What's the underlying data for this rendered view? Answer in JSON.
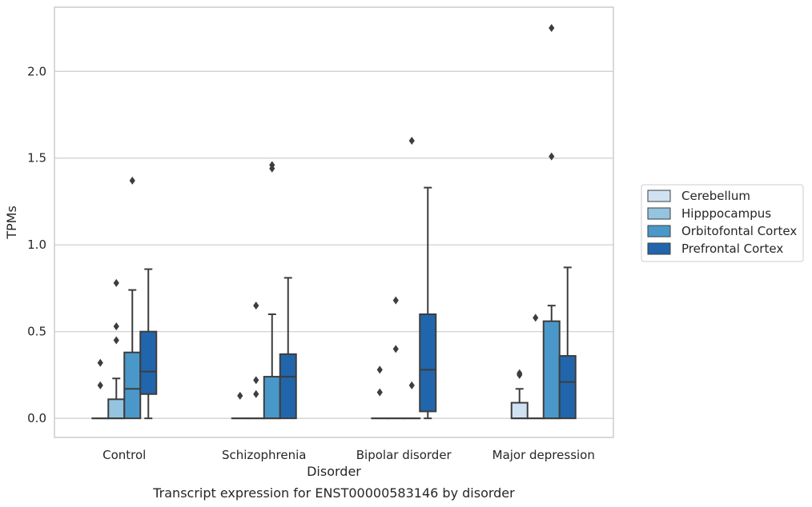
{
  "chart_data": {
    "type": "box",
    "xlabel": "Disorder",
    "ylabel": "TPMs",
    "caption": "Transcript expression for ENST00000583146 by disorder",
    "categories": [
      "Control",
      "Schizophrenia",
      "Bipolar disorder",
      "Major depression"
    ],
    "ylim": [
      -0.11,
      2.37
    ],
    "yticks": [
      0.0,
      0.5,
      1.0,
      1.5,
      2.0
    ],
    "ytick_labels": [
      "0.0",
      "0.5",
      "1.0",
      "1.5",
      "2.0"
    ],
    "grid": "horizontal",
    "legend_position": "right",
    "series": [
      {
        "name": "Cerebellum",
        "color": "#d0e1f2",
        "boxes": [
          {
            "q1": 0,
            "median": 0,
            "q3": 0,
            "whisker_low": 0,
            "whisker_high": 0,
            "outliers": [
              0.19,
              0.32
            ]
          },
          {
            "q1": 0,
            "median": 0,
            "q3": 0,
            "whisker_low": 0,
            "whisker_high": 0,
            "outliers": [
              0.13
            ]
          },
          {
            "q1": 0,
            "median": 0,
            "q3": 0,
            "whisker_low": 0,
            "whisker_high": 0,
            "outliers": [
              0.15,
              0.28
            ]
          },
          {
            "q1": 0,
            "median": 0,
            "q3": 0.09,
            "whisker_low": 0,
            "whisker_high": 0.17,
            "outliers": [
              0.25,
              0.26
            ]
          }
        ]
      },
      {
        "name": "Hipppocampus",
        "color": "#94c4df",
        "boxes": [
          {
            "q1": 0,
            "median": 0,
            "q3": 0.11,
            "whisker_low": 0,
            "whisker_high": 0.23,
            "outliers": [
              0.45,
              0.53,
              0.78
            ]
          },
          {
            "q1": 0,
            "median": 0,
            "q3": 0,
            "whisker_low": 0,
            "whisker_high": 0,
            "outliers": [
              0.14,
              0.22,
              0.65
            ]
          },
          {
            "q1": 0,
            "median": 0,
            "q3": 0,
            "whisker_low": 0,
            "whisker_high": 0,
            "outliers": [
              0.4,
              0.68
            ]
          },
          {
            "q1": 0,
            "median": 0,
            "q3": 0,
            "whisker_low": 0,
            "whisker_high": 0,
            "outliers": [
              0.58
            ]
          }
        ]
      },
      {
        "name": "Orbitofontal Cortex",
        "color": "#4a98c9",
        "boxes": [
          {
            "q1": 0,
            "median": 0.17,
            "q3": 0.38,
            "whisker_low": 0,
            "whisker_high": 0.74,
            "outliers": [
              1.37
            ]
          },
          {
            "q1": 0,
            "median": 0,
            "q3": 0.24,
            "whisker_low": 0,
            "whisker_high": 0.6,
            "outliers": [
              1.44,
              1.46
            ]
          },
          {
            "q1": 0,
            "median": 0,
            "q3": 0,
            "whisker_low": 0,
            "whisker_high": 0,
            "outliers": [
              0.19,
              1.6
            ]
          },
          {
            "q1": 0,
            "median": 0,
            "q3": 0.56,
            "whisker_low": 0,
            "whisker_high": 0.65,
            "outliers": [
              1.51,
              2.25
            ]
          }
        ]
      },
      {
        "name": "Prefrontal Cortex",
        "color": "#2166ac",
        "boxes": [
          {
            "q1": 0.14,
            "median": 0.27,
            "q3": 0.5,
            "whisker_low": 0,
            "whisker_high": 0.86,
            "outliers": []
          },
          {
            "q1": 0,
            "median": 0.24,
            "q3": 0.37,
            "whisker_low": 0,
            "whisker_high": 0.81,
            "outliers": []
          },
          {
            "q1": 0.04,
            "median": 0.28,
            "q3": 0.6,
            "whisker_low": 0,
            "whisker_high": 1.33,
            "outliers": []
          },
          {
            "q1": 0,
            "median": 0.21,
            "q3": 0.36,
            "whisker_low": 0,
            "whisker_high": 0.87,
            "outliers": []
          }
        ]
      }
    ]
  }
}
